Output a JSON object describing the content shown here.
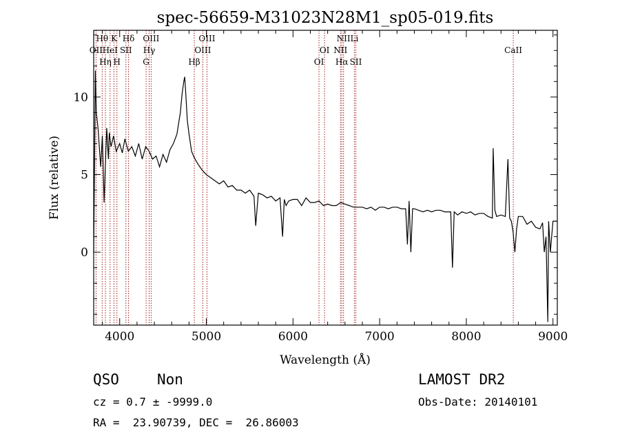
{
  "chart_data": {
    "type": "line",
    "title": "spec-56659-M31023N28M1_sp05-019.fits",
    "xlabel": "Wavelength (Å)",
    "ylabel": "Flux (relative)",
    "xlim": [
      3700,
      9050
    ],
    "ylim": [
      -4.7,
      14.3
    ],
    "xticks": [
      4000,
      5000,
      6000,
      7000,
      8000,
      9000
    ],
    "yticks": [
      0,
      5,
      10
    ],
    "series": [
      {
        "color": "#000000",
        "x": [
          3700,
          3720,
          3730,
          3750,
          3780,
          3800,
          3820,
          3850,
          3870,
          3880,
          3900,
          3930,
          3960,
          4000,
          4030,
          4060,
          4100,
          4140,
          4180,
          4220,
          4260,
          4300,
          4340,
          4380,
          4420,
          4460,
          4500,
          4540,
          4580,
          4620,
          4660,
          4700,
          4720,
          4740,
          4750,
          4760,
          4770,
          4780,
          4800,
          4830,
          4860,
          4900,
          4950,
          5000,
          5050,
          5100,
          5150,
          5200,
          5250,
          5300,
          5350,
          5400,
          5450,
          5500,
          5550,
          5570,
          5600,
          5650,
          5700,
          5750,
          5800,
          5850,
          5880,
          5900,
          5920,
          5950,
          6000,
          6050,
          6100,
          6150,
          6200,
          6250,
          6300,
          6350,
          6400,
          6450,
          6500,
          6550,
          6600,
          6650,
          6700,
          6750,
          6800,
          6850,
          6900,
          6950,
          7000,
          7050,
          7100,
          7150,
          7200,
          7250,
          7300,
          7320,
          7340,
          7360,
          7380,
          7400,
          7450,
          7500,
          7550,
          7600,
          7650,
          7700,
          7750,
          7800,
          7820,
          7840,
          7860,
          7900,
          7950,
          8000,
          8050,
          8100,
          8150,
          8200,
          8250,
          8300,
          8310,
          8330,
          8350,
          8400,
          8450,
          8480,
          8500,
          8520,
          8540,
          8560,
          8580,
          8600,
          8650,
          8700,
          8750,
          8800,
          8850,
          8880,
          8900,
          8920,
          8940,
          8950,
          8970,
          9000,
          9050
        ],
        "y": [
          0.0,
          11.7,
          9.0,
          8.0,
          5.5,
          7.5,
          3.2,
          8.0,
          6.0,
          7.7,
          6.8,
          7.5,
          6.5,
          7.0,
          6.4,
          7.3,
          6.5,
          6.8,
          6.2,
          7.0,
          6.0,
          6.8,
          6.5,
          6.0,
          6.2,
          5.5,
          6.3,
          5.8,
          6.6,
          7.0,
          7.6,
          9.0,
          10.2,
          11.0,
          11.3,
          10.5,
          9.5,
          8.5,
          7.6,
          6.5,
          6.1,
          5.7,
          5.3,
          5.0,
          4.8,
          4.6,
          4.4,
          4.6,
          4.2,
          4.3,
          4.0,
          4.0,
          3.8,
          4.0,
          3.6,
          1.7,
          3.8,
          3.7,
          3.5,
          3.6,
          3.3,
          3.5,
          1.0,
          3.4,
          3.0,
          3.3,
          3.4,
          3.4,
          3.0,
          3.5,
          3.2,
          3.2,
          3.3,
          3.0,
          3.1,
          3.0,
          3.0,
          3.2,
          3.1,
          3.0,
          2.9,
          2.9,
          2.9,
          2.8,
          2.9,
          2.7,
          2.9,
          2.9,
          2.8,
          2.9,
          2.9,
          2.8,
          2.8,
          0.5,
          3.3,
          0.0,
          2.8,
          2.8,
          2.7,
          2.6,
          2.7,
          2.6,
          2.7,
          2.7,
          2.6,
          2.6,
          2.6,
          -1.0,
          2.6,
          2.4,
          2.6,
          2.5,
          2.6,
          2.4,
          2.5,
          2.5,
          2.3,
          2.2,
          6.7,
          2.7,
          2.3,
          2.4,
          2.3,
          6.0,
          2.2,
          2.0,
          1.3,
          0.0,
          1.5,
          2.3,
          2.3,
          1.8,
          2.0,
          1.6,
          1.5,
          1.9,
          0.0,
          1.0,
          -4.5,
          2.0,
          0.0,
          2.0,
          2.0
        ]
      }
    ],
    "emission_lines": [
      {
        "label": "OII",
        "wl": 3727,
        "row": 2
      },
      {
        "label": "Hθ",
        "wl": 3798,
        "row": 0
      },
      {
        "label": "Hη",
        "wl": 3835,
        "row": 3
      },
      {
        "label": "HeI",
        "wl": 3889,
        "row": 1
      },
      {
        "label": "K",
        "wl": 3934,
        "row": 0
      },
      {
        "label": "H",
        "wl": 3968,
        "row": 3
      },
      {
        "label": "Hδ",
        "wl": 4102,
        "row": 0
      },
      {
        "label": "SII",
        "wl": 4072,
        "row": 1
      },
      {
        "label": "OIII",
        "wl": 4363,
        "row": 0
      },
      {
        "label": "Hγ",
        "wl": 4340,
        "row": 1
      },
      {
        "label": "G",
        "wl": 4305,
        "row": 3
      },
      {
        "label": "Hβ",
        "wl": 4861,
        "row": 3
      },
      {
        "label": "OIII",
        "wl": 4959,
        "row": 1
      },
      {
        "label": "OIII",
        "wl": 5007,
        "row": 0
      },
      {
        "label": "OI",
        "wl": 6300,
        "row": 3
      },
      {
        "label": "OI",
        "wl": 6364,
        "row": 1
      },
      {
        "label": "NII",
        "wl": 6548,
        "row": 1
      },
      {
        "label": "NII",
        "wl": 6583,
        "row": 0
      },
      {
        "label": "Hα",
        "wl": 6563,
        "row": 3
      },
      {
        "label": "Li",
        "wl": 6708,
        "row": 0
      },
      {
        "label": "SII",
        "wl": 6725,
        "row": 3
      },
      {
        "label": "CaII",
        "wl": 8542,
        "row": 1
      }
    ]
  },
  "info": {
    "class": "QSO",
    "subclass": "Non",
    "cz": "cz = 0.7 ± -9999.0",
    "radec": "RA =  23.90739, DEC =  26.86003",
    "survey": "LAMOST DR2",
    "obsdate": "Obs-Date: 20140101"
  }
}
